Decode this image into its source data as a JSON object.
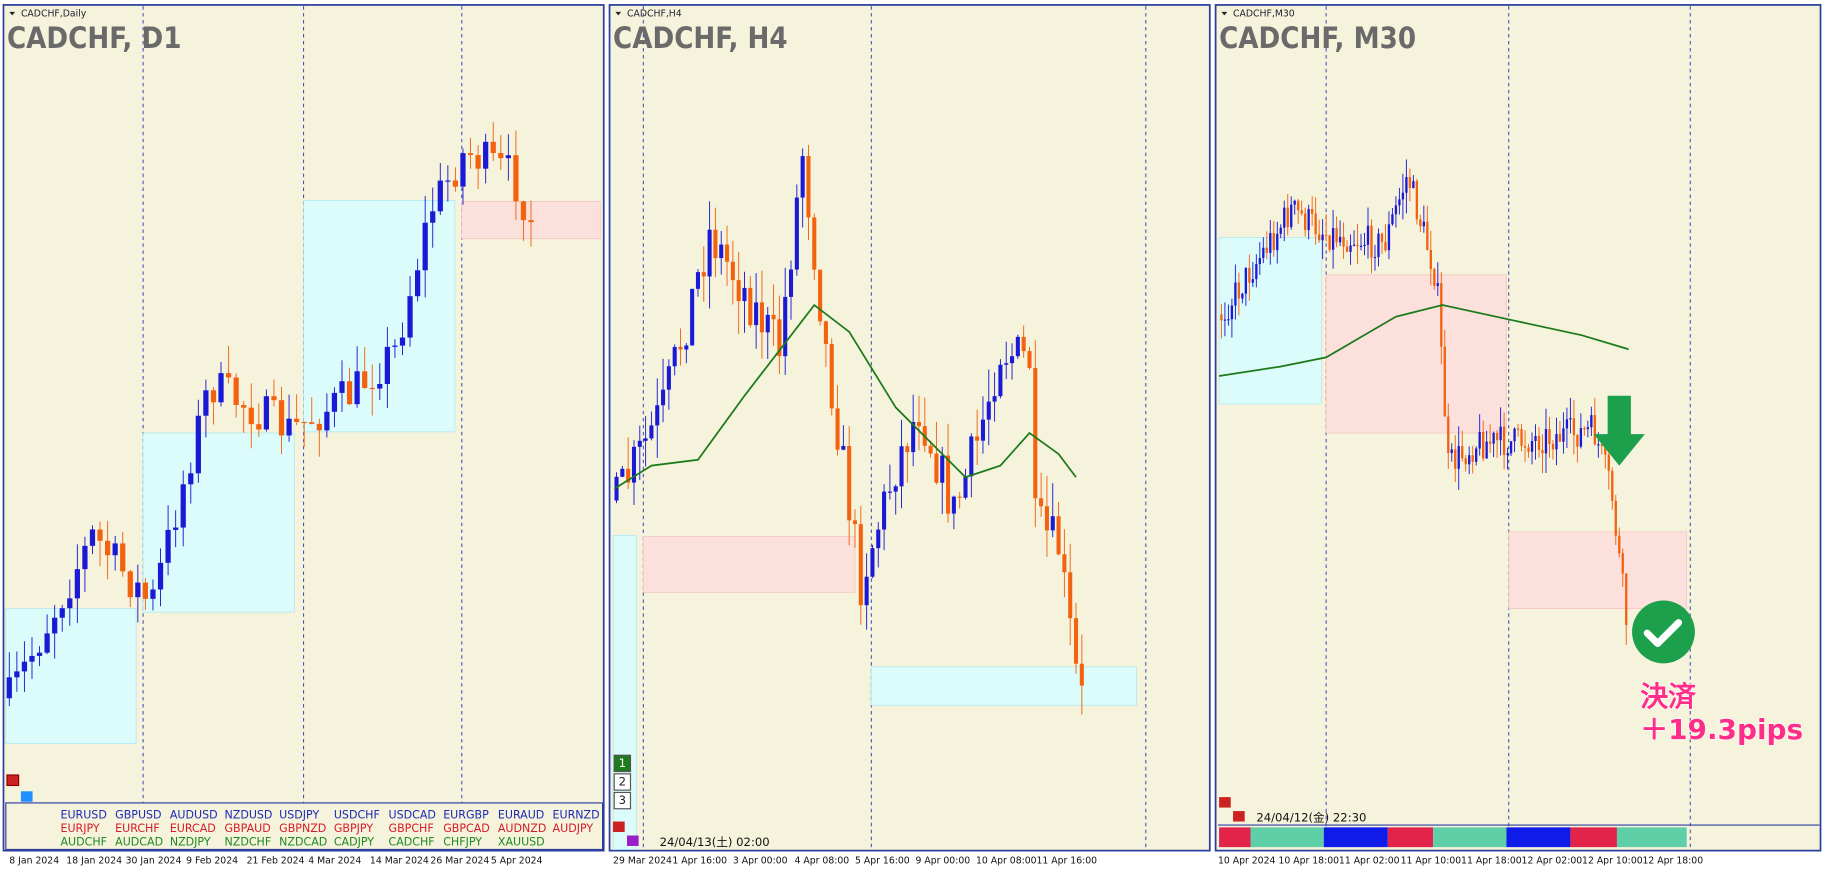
{
  "panels": [
    {
      "window_title": "CADCHF,Daily",
      "symbol_label": "CADCHF, D1",
      "time_labels": [
        "8 Jan 2024",
        "18 Jan 2024",
        "30 Jan 2024",
        "9 Feb 2024",
        "21 Feb 2024",
        "4 Mar 2024",
        "14 Mar 2024",
        "26 Mar 2024",
        "5 Apr 2024"
      ]
    },
    {
      "window_title": "CADCHF,H4",
      "symbol_label": "CADCHF, H4",
      "time_labels": [
        "29 Mar 2024",
        "1 Apr 16:00",
        "3 Apr 00:00",
        "4 Apr 08:00",
        "5 Apr 16:00",
        "9 Apr 00:00",
        "10 Apr 08:00",
        "11 Apr 16:00"
      ],
      "buttons": [
        "1",
        "2",
        "3"
      ],
      "timestamp": "24/04/13(土) 02:00"
    },
    {
      "window_title": "CADCHF,M30",
      "symbol_label": "CADCHF, M30",
      "time_labels": [
        "10 Apr 2024",
        "10 Apr 18:00",
        "11 Apr 02:00",
        "11 Apr 10:00",
        "11 Apr 18:00",
        "12 Apr 02:00",
        "12 Apr 10:00",
        "12 Apr 18:00"
      ],
      "timestamp": "24/04/12(金) 22:30"
    }
  ],
  "symbol_list": {
    "rows": [
      [
        "EURUSD",
        "GBPUSD",
        "AUDUSD",
        "NZDUSD",
        "USDJPY",
        "USDCHF",
        "USDCAD",
        "EURGBP",
        "EURAUD",
        "EURNZD"
      ],
      [
        "EURJPY",
        "EURCHF",
        "EURCAD",
        "GBPAUD",
        "GBPNZD",
        "GBPJPY",
        "GBPCHF",
        "GBPCAD",
        "AUDNZD",
        "AUDJPY"
      ],
      [
        "AUDCHF",
        "AUDCAD",
        "NZDJPY",
        "NZDCHF",
        "NZDCAD",
        "CADJPY",
        "CADCHF",
        "CHFJPY",
        "XAUUSD"
      ]
    ]
  },
  "annotation": {
    "title": "決済",
    "pips": "＋19.3pips"
  }
}
